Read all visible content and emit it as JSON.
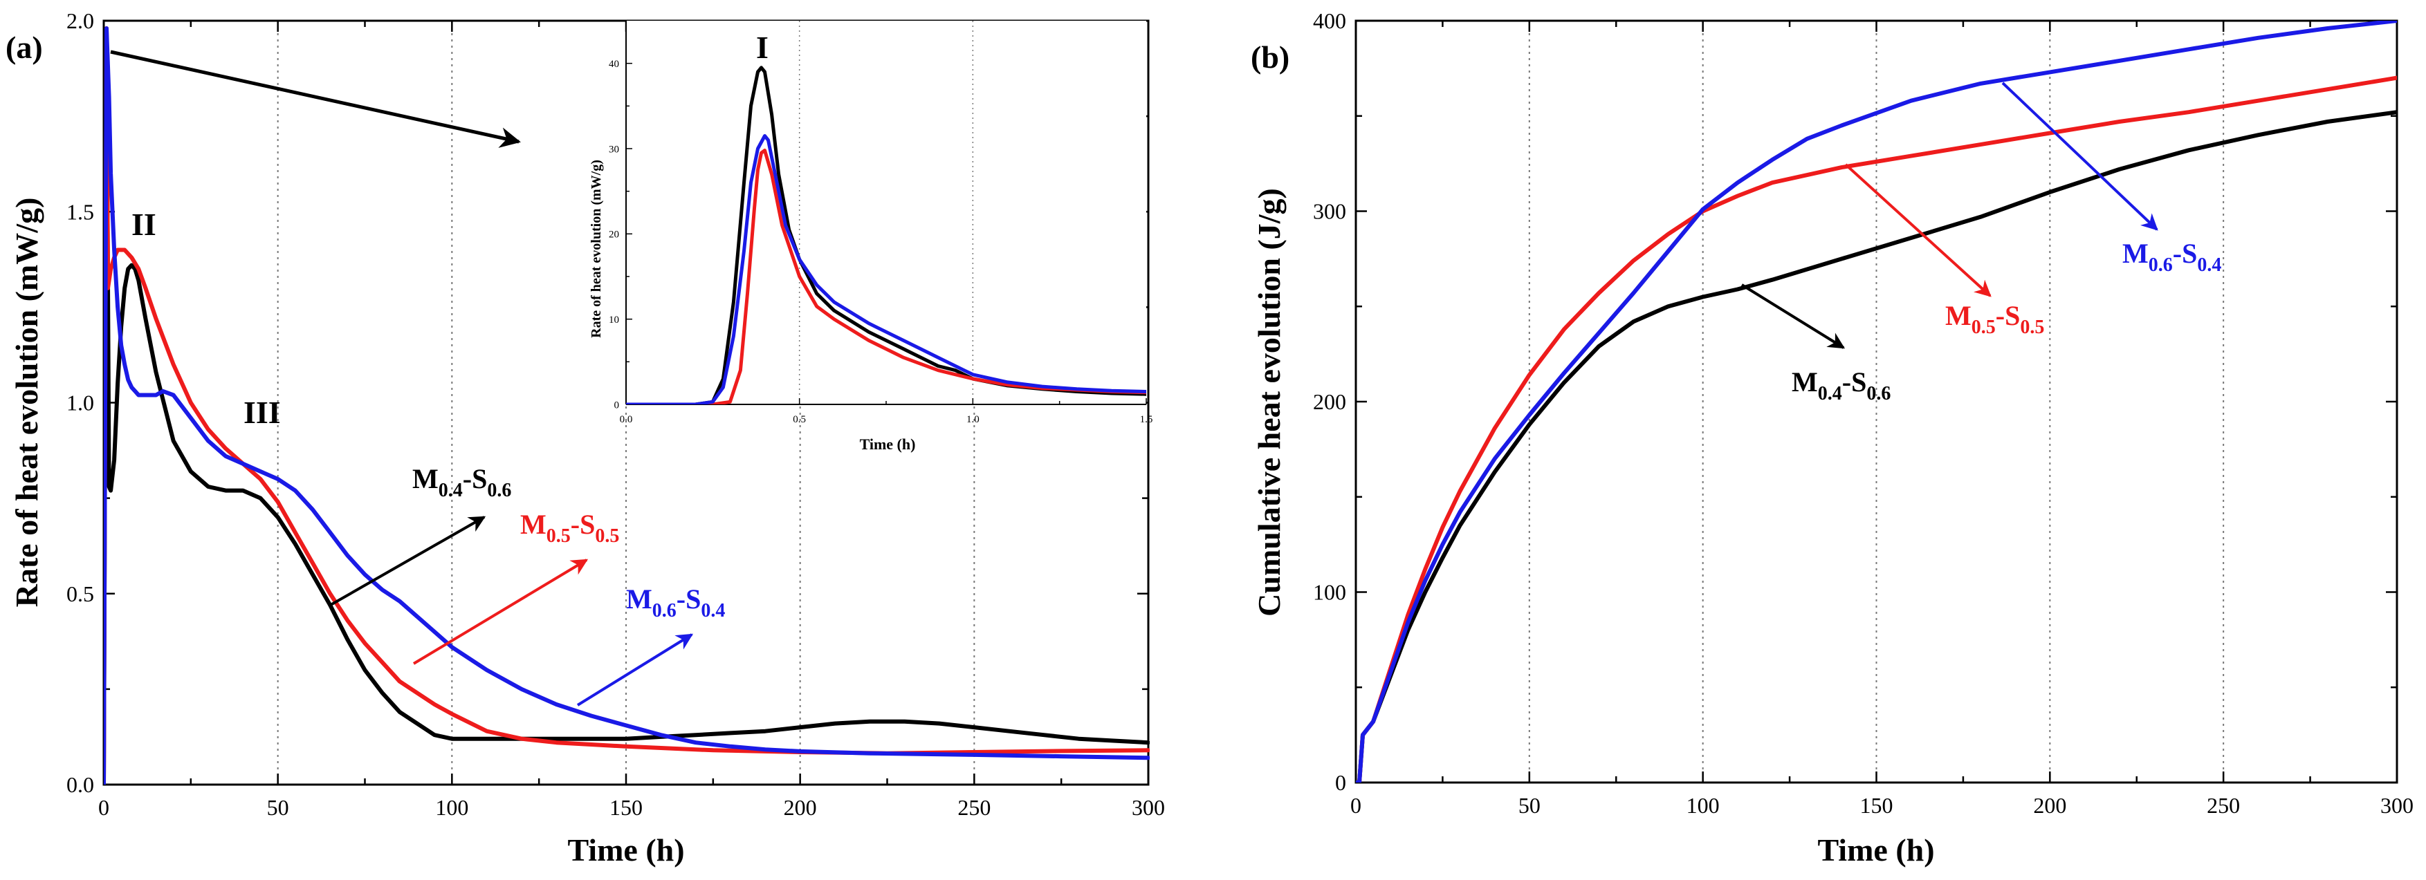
{
  "chart_data": [
    {
      "type": "line",
      "panel_label": "(a)",
      "xlabel": "Time (h)",
      "ylabel": "Rate of heat evolution (mW/g)",
      "xlim": [
        0,
        300
      ],
      "ylim": [
        0.0,
        2.0
      ],
      "xticks": [
        "0",
        "50",
        "100",
        "150",
        "200",
        "250",
        "300"
      ],
      "yticks": [
        "0.0",
        "0.5",
        "1.0",
        "1.5",
        "2.0"
      ],
      "grid": "vertical dotted",
      "colors": {
        "M0.4-S0.6": "#000000",
        "M0.5-S0.5": "#ee1c1c",
        "M0.6-S0.4": "#1a1ae6"
      },
      "series": [
        {
          "name": "M0.4-S0.6",
          "color": "#000000",
          "x": [
            0,
            0.8,
            1.5,
            2,
            3,
            4,
            5,
            6,
            7,
            8,
            9,
            10,
            12,
            15,
            20,
            25,
            30,
            35,
            40,
            45,
            50,
            55,
            60,
            65,
            70,
            75,
            80,
            85,
            90,
            95,
            100,
            105,
            110,
            120,
            130,
            140,
            150,
            160,
            170,
            180,
            190,
            200,
            210,
            220,
            230,
            240,
            250,
            260,
            270,
            280,
            290,
            300
          ],
          "y": [
            0,
            1.98,
            0.78,
            0.77,
            0.85,
            1.05,
            1.2,
            1.3,
            1.35,
            1.36,
            1.35,
            1.32,
            1.22,
            1.08,
            0.9,
            0.82,
            0.78,
            0.77,
            0.77,
            0.75,
            0.7,
            0.63,
            0.55,
            0.47,
            0.38,
            0.3,
            0.24,
            0.19,
            0.16,
            0.13,
            0.12,
            0.12,
            0.12,
            0.12,
            0.12,
            0.12,
            0.12,
            0.125,
            0.13,
            0.135,
            0.14,
            0.15,
            0.16,
            0.165,
            0.165,
            0.16,
            0.15,
            0.14,
            0.13,
            0.12,
            0.115,
            0.11
          ]
        },
        {
          "name": "M0.5-S0.5",
          "color": "#ee1c1c",
          "x": [
            0,
            0.8,
            1.2,
            2,
            3,
            4,
            6,
            8,
            10,
            12,
            15,
            20,
            25,
            30,
            35,
            40,
            45,
            50,
            55,
            60,
            65,
            70,
            75,
            80,
            85,
            90,
            95,
            100,
            110,
            120,
            130,
            140,
            150,
            175,
            200,
            225,
            250,
            275,
            300
          ],
          "y": [
            0,
            1.98,
            1.3,
            1.35,
            1.38,
            1.4,
            1.4,
            1.38,
            1.35,
            1.3,
            1.22,
            1.1,
            1.0,
            0.93,
            0.88,
            0.84,
            0.8,
            0.74,
            0.66,
            0.58,
            0.5,
            0.43,
            0.37,
            0.32,
            0.27,
            0.24,
            0.21,
            0.185,
            0.14,
            0.12,
            0.11,
            0.105,
            0.1,
            0.09,
            0.085,
            0.082,
            0.085,
            0.088,
            0.09
          ]
        },
        {
          "name": "M0.6-S0.4",
          "color": "#1a1ae6",
          "x": [
            0,
            0.8,
            1.5,
            2,
            3,
            4,
            5,
            6,
            7,
            8,
            9,
            10,
            12,
            15,
            17,
            20,
            25,
            30,
            35,
            40,
            45,
            50,
            55,
            60,
            65,
            70,
            75,
            80,
            85,
            90,
            95,
            100,
            110,
            120,
            130,
            140,
            150,
            160,
            170,
            180,
            190,
            200,
            220,
            250,
            275,
            300
          ],
          "y": [
            0,
            1.98,
            1.8,
            1.6,
            1.4,
            1.25,
            1.15,
            1.1,
            1.06,
            1.04,
            1.03,
            1.02,
            1.02,
            1.02,
            1.03,
            1.02,
            0.96,
            0.9,
            0.86,
            0.84,
            0.82,
            0.8,
            0.77,
            0.72,
            0.66,
            0.6,
            0.55,
            0.51,
            0.48,
            0.44,
            0.4,
            0.36,
            0.3,
            0.25,
            0.21,
            0.18,
            0.155,
            0.13,
            0.11,
            0.1,
            0.092,
            0.087,
            0.082,
            0.078,
            0.074,
            0.07
          ]
        }
      ],
      "annotations": {
        "peak_I": "I",
        "peak_II": "II",
        "peak_III": "III",
        "label_m04": {
          "main": "M",
          "sub1": "0.4",
          "mid": "-S",
          "sub2": "0.6"
        },
        "label_m05": {
          "main": "M",
          "sub1": "0.5",
          "mid": "-S",
          "sub2": "0.5"
        },
        "label_m06": {
          "main": "M",
          "sub1": "0.6",
          "mid": "-S",
          "sub2": "0.4"
        }
      },
      "inset": {
        "xlabel": "Time (h)",
        "ylabel": "Rate of heat evolution (mW/g)",
        "xlim": [
          0,
          1.5
        ],
        "ylim": [
          0,
          45
        ],
        "xticks": [
          "0.0",
          "0.5",
          "1.0",
          "1.5"
        ],
        "yticks": [
          "0",
          "10",
          "20",
          "30",
          "40"
        ],
        "grid": "vertical dotted",
        "series": [
          {
            "name": "M0.4-S0.6",
            "color": "#000000",
            "x": [
              0,
              0.2,
              0.25,
              0.28,
              0.31,
              0.34,
              0.36,
              0.38,
              0.39,
              0.4,
              0.42,
              0.44,
              0.47,
              0.5,
              0.55,
              0.6,
              0.7,
              0.8,
              0.9,
              0.95,
              1.0,
              1.1,
              1.2,
              1.3,
              1.4,
              1.5
            ],
            "y": [
              0,
              0,
              0.3,
              3,
              12,
              26,
              35,
              39,
              39.5,
              39,
              34,
              27,
              20.5,
              17,
              13,
              11,
              8.5,
              6.5,
              4.5,
              4,
              3,
              2.2,
              1.8,
              1.5,
              1.3,
              1.2
            ]
          },
          {
            "name": "M0.5-S0.5",
            "color": "#ee1c1c",
            "x": [
              0,
              0.25,
              0.3,
              0.33,
              0.35,
              0.37,
              0.38,
              0.39,
              0.4,
              0.42,
              0.45,
              0.5,
              0.55,
              0.6,
              0.7,
              0.8,
              0.9,
              1.0,
              1.1,
              1.2,
              1.3,
              1.4,
              1.5
            ],
            "y": [
              0,
              0,
              0.3,
              4,
              13,
              23,
              27.5,
              29.5,
              29.8,
              27,
              21,
              15,
              11.5,
              10,
              7.5,
              5.5,
              4,
              3,
              2.3,
              1.9,
              1.7,
              1.5,
              1.4
            ]
          },
          {
            "name": "M0.6-S0.4",
            "color": "#1a1ae6",
            "x": [
              0,
              0.2,
              0.25,
              0.28,
              0.31,
              0.34,
              0.36,
              0.38,
              0.4,
              0.41,
              0.43,
              0.46,
              0.5,
              0.55,
              0.6,
              0.7,
              0.8,
              0.9,
              1.0,
              1.1,
              1.2,
              1.3,
              1.4,
              1.5
            ],
            "y": [
              0,
              0,
              0.3,
              2,
              8,
              18,
              26,
              30,
              31.5,
              31,
              27,
              21,
              17,
              14,
              12,
              9.5,
              7.5,
              5.5,
              3.5,
              2.6,
              2.1,
              1.8,
              1.6,
              1.5
            ]
          }
        ]
      }
    },
    {
      "type": "line",
      "panel_label": "(b)",
      "xlabel": "Time (h)",
      "ylabel": "Cumulative heat evolution (J/g)",
      "xlim": [
        0,
        300
      ],
      "ylim": [
        0,
        400
      ],
      "xticks": [
        "0",
        "50",
        "100",
        "150",
        "200",
        "250",
        "300"
      ],
      "yticks": [
        "0",
        "100",
        "200",
        "300",
        "400"
      ],
      "grid": "vertical dotted",
      "series": [
        {
          "name": "M0.4-S0.6",
          "color": "#000000",
          "x": [
            0,
            1,
            2,
            5,
            10,
            15,
            20,
            25,
            30,
            40,
            50,
            60,
            70,
            80,
            90,
            100,
            110,
            120,
            140,
            160,
            180,
            200,
            220,
            240,
            260,
            280,
            300
          ],
          "y": [
            0,
            0,
            25,
            32,
            56,
            80,
            100,
            118,
            135,
            163,
            188,
            210,
            229,
            242,
            250,
            255,
            259,
            264,
            275,
            286,
            297,
            310,
            322,
            332,
            340,
            347,
            352
          ]
        },
        {
          "name": "M0.5-S0.5",
          "color": "#ee1c1c",
          "x": [
            0,
            1,
            2,
            5,
            10,
            15,
            20,
            25,
            30,
            40,
            50,
            60,
            70,
            80,
            90,
            100,
            110,
            120,
            140,
            160,
            180,
            200,
            220,
            240,
            260,
            280,
            300
          ],
          "y": [
            0,
            0,
            25,
            32,
            60,
            88,
            112,
            134,
            153,
            186,
            214,
            238,
            257,
            274,
            288,
            300,
            308,
            315,
            323,
            329,
            335,
            341,
            347,
            352,
            358,
            364,
            370
          ]
        },
        {
          "name": "M0.6-S0.4",
          "color": "#1a1ae6",
          "x": [
            0,
            1,
            2,
            5,
            10,
            15,
            20,
            25,
            30,
            40,
            50,
            60,
            70,
            80,
            90,
            100,
            110,
            120,
            130,
            140,
            160,
            180,
            200,
            220,
            240,
            260,
            280,
            300
          ],
          "y": [
            0,
            0,
            25,
            32,
            58,
            84,
            106,
            125,
            142,
            170,
            193,
            215,
            236,
            257,
            279,
            301,
            315,
            327,
            338,
            345,
            358,
            367,
            373,
            379,
            385,
            391,
            396,
            400
          ]
        }
      ],
      "annotations": {
        "label_m04": {
          "main": "M",
          "sub1": "0.4",
          "mid": "-S",
          "sub2": "0.6"
        },
        "label_m05": {
          "main": "M",
          "sub1": "0.5",
          "mid": "-S",
          "sub2": "0.5"
        },
        "label_m06": {
          "main": "M",
          "sub1": "0.6",
          "mid": "-S",
          "sub2": "0.4"
        }
      }
    }
  ]
}
